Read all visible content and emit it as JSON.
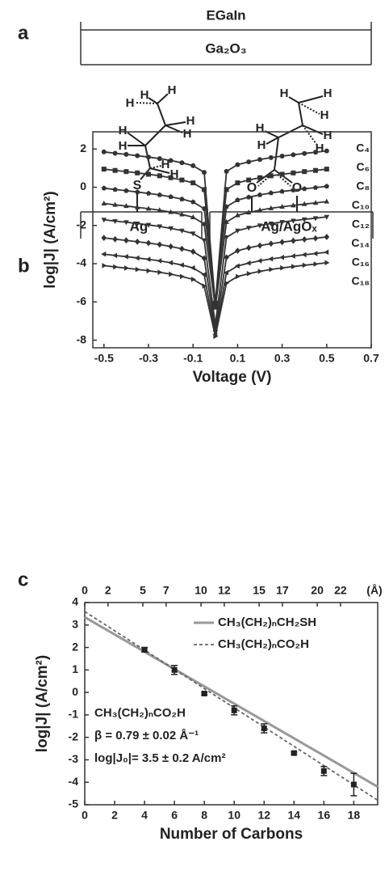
{
  "panel_a": {
    "label": "a",
    "top_electrode": "EGaIn",
    "oxide": "Ga₂O₃",
    "left_substrate": "Ag",
    "right_substrate": "Ag/AgOₓ",
    "left_atoms": [
      "S",
      "H",
      "H",
      "H",
      "H",
      "H",
      "H",
      "H",
      "H",
      "H"
    ],
    "right_atoms": [
      "O",
      "O",
      "H",
      "H",
      "H",
      "H",
      "H",
      "H",
      "H"
    ]
  },
  "chart_data": [
    {
      "type": "line",
      "panel_label": "b",
      "xlabel": "Voltage (V)",
      "ylabel": "log|J| (A/cm²)",
      "x": [
        -0.5,
        -0.45,
        -0.4,
        -0.35,
        -0.3,
        -0.25,
        -0.2,
        -0.15,
        -0.1,
        -0.05,
        0,
        0.05,
        0.1,
        0.15,
        0.2,
        0.25,
        0.3,
        0.35,
        0.4,
        0.45,
        0.5
      ],
      "xlim": [
        -0.55,
        0.7
      ],
      "xticks": [
        -0.5,
        -0.3,
        -0.1,
        0.1,
        0.3,
        0.5,
        0.7
      ],
      "ylim": [
        -8.4,
        2.9
      ],
      "yticks": [
        -8,
        -6,
        -4,
        -2,
        0,
        2
      ],
      "series": [
        {
          "name": "C₄",
          "color": "#333333",
          "marker": "circle",
          "values": [
            1.85,
            1.78,
            1.72,
            1.65,
            1.58,
            1.5,
            1.4,
            1.28,
            1.13,
            0.78,
            -6.1,
            0.83,
            1.18,
            1.33,
            1.45,
            1.55,
            1.63,
            1.7,
            1.77,
            1.83,
            1.9
          ]
        },
        {
          "name": "C₆",
          "color": "#333333",
          "marker": "square",
          "values": [
            0.95,
            0.88,
            0.82,
            0.75,
            0.68,
            0.6,
            0.5,
            0.38,
            0.23,
            -0.12,
            -6.2,
            -0.12,
            0.23,
            0.38,
            0.5,
            0.6,
            0.68,
            0.75,
            0.82,
            0.88,
            0.95
          ]
        },
        {
          "name": "C₈",
          "color": "#333333",
          "marker": "pentagon",
          "values": [
            -0.05,
            -0.12,
            -0.18,
            -0.25,
            -0.32,
            -0.4,
            -0.5,
            -0.62,
            -0.77,
            -1.12,
            -6.0,
            -1.02,
            -0.67,
            -0.52,
            -0.4,
            -0.3,
            -0.22,
            -0.15,
            -0.08,
            -0.02,
            0.05
          ]
        },
        {
          "name": "C₁₀",
          "color": "#333333",
          "marker": "triangle-up",
          "values": [
            -0.85,
            -0.92,
            -0.98,
            -1.05,
            -1.12,
            -1.2,
            -1.3,
            -1.42,
            -1.57,
            -1.92,
            -6.3,
            -1.82,
            -1.47,
            -1.32,
            -1.2,
            -1.1,
            -1.02,
            -0.95,
            -0.88,
            -0.82,
            -0.75
          ]
        },
        {
          "name": "C₁₂",
          "color": "#333333",
          "marker": "triangle-down",
          "values": [
            -1.7,
            -1.77,
            -1.83,
            -1.9,
            -1.97,
            -2.05,
            -2.15,
            -2.27,
            -2.42,
            -2.77,
            -7.2,
            -2.62,
            -2.27,
            -2.12,
            -2,
            -1.9,
            -1.82,
            -1.75,
            -1.68,
            -1.62,
            -1.55
          ]
        },
        {
          "name": "C₁₄",
          "color": "#333333",
          "marker": "diamond",
          "values": [
            -2.65,
            -2.72,
            -2.78,
            -2.85,
            -2.92,
            -3,
            -3.1,
            -3.22,
            -3.37,
            -3.72,
            -7.5,
            -3.67,
            -3.32,
            -3.17,
            -3.05,
            -2.95,
            -2.87,
            -2.8,
            -2.73,
            -2.67,
            -2.6
          ]
        },
        {
          "name": "C₁₆",
          "color": "#333333",
          "marker": "triangle-left",
          "values": [
            -3.5,
            -3.57,
            -3.63,
            -3.7,
            -3.77,
            -3.85,
            -3.95,
            -4.07,
            -4.22,
            -4.57,
            -7.7,
            -4.47,
            -4.12,
            -3.97,
            -3.85,
            -3.75,
            -3.67,
            -3.6,
            -3.53,
            -3.47,
            -3.4
          ]
        },
        {
          "name": "C₁₈",
          "color": "#333333",
          "marker": "triangle-right",
          "values": [
            -4.1,
            -4.17,
            -4.23,
            -4.3,
            -4.37,
            -4.45,
            -4.55,
            -4.67,
            -4.82,
            -5.17,
            -7.8,
            -5.02,
            -4.67,
            -4.52,
            -4.4,
            -4.3,
            -4.22,
            -4.15,
            -4.08,
            -4.02,
            -3.95
          ]
        }
      ]
    },
    {
      "type": "scatter",
      "panel_label": "c",
      "xlabel": "Number of Carbons",
      "ylabel": "log|J| (A/cm²)",
      "x": [
        4,
        6,
        8,
        10,
        12,
        14,
        16,
        18
      ],
      "values": [
        1.9,
        1.0,
        -0.05,
        -0.8,
        -1.6,
        -2.7,
        -3.5,
        -4.1
      ],
      "errors": [
        0.1,
        0.2,
        0.05,
        0.2,
        0.2,
        0.05,
        0.2,
        0.5
      ],
      "color": "#222222",
      "xlim": [
        0,
        19.6
      ],
      "xticks": [
        0,
        2,
        4,
        6,
        8,
        10,
        12,
        14,
        16,
        18
      ],
      "ylim": [
        -5,
        4
      ],
      "yticks": [
        -5,
        -4,
        -3,
        -2,
        -1,
        0,
        1,
        2,
        3,
        4
      ],
      "x2lim": [
        0,
        25.2
      ],
      "x2ticks": [
        0,
        2,
        5,
        7,
        10,
        12,
        15,
        17,
        20,
        22
      ],
      "x2unit": "(Å)",
      "lines": [
        {
          "name": "CH₃(CH₂)ₙCH₂SH",
          "style": "solid",
          "color": "#999999",
          "x": [
            0,
            19.6
          ],
          "values": [
            3.35,
            -4.2
          ]
        },
        {
          "name": "CH₃(CH₂)ₙCO₂H",
          "style": "dashed",
          "color": "#666666",
          "x": [
            0,
            19.6
          ],
          "values": [
            3.6,
            -4.8
          ]
        }
      ],
      "annotations": [
        "CH₃(CH₂)ₙCO₂H",
        "β = 0.79 ± 0.02 Å⁻¹",
        "log|J₀|= 3.5 ± 0.2 A/cm²"
      ]
    }
  ]
}
